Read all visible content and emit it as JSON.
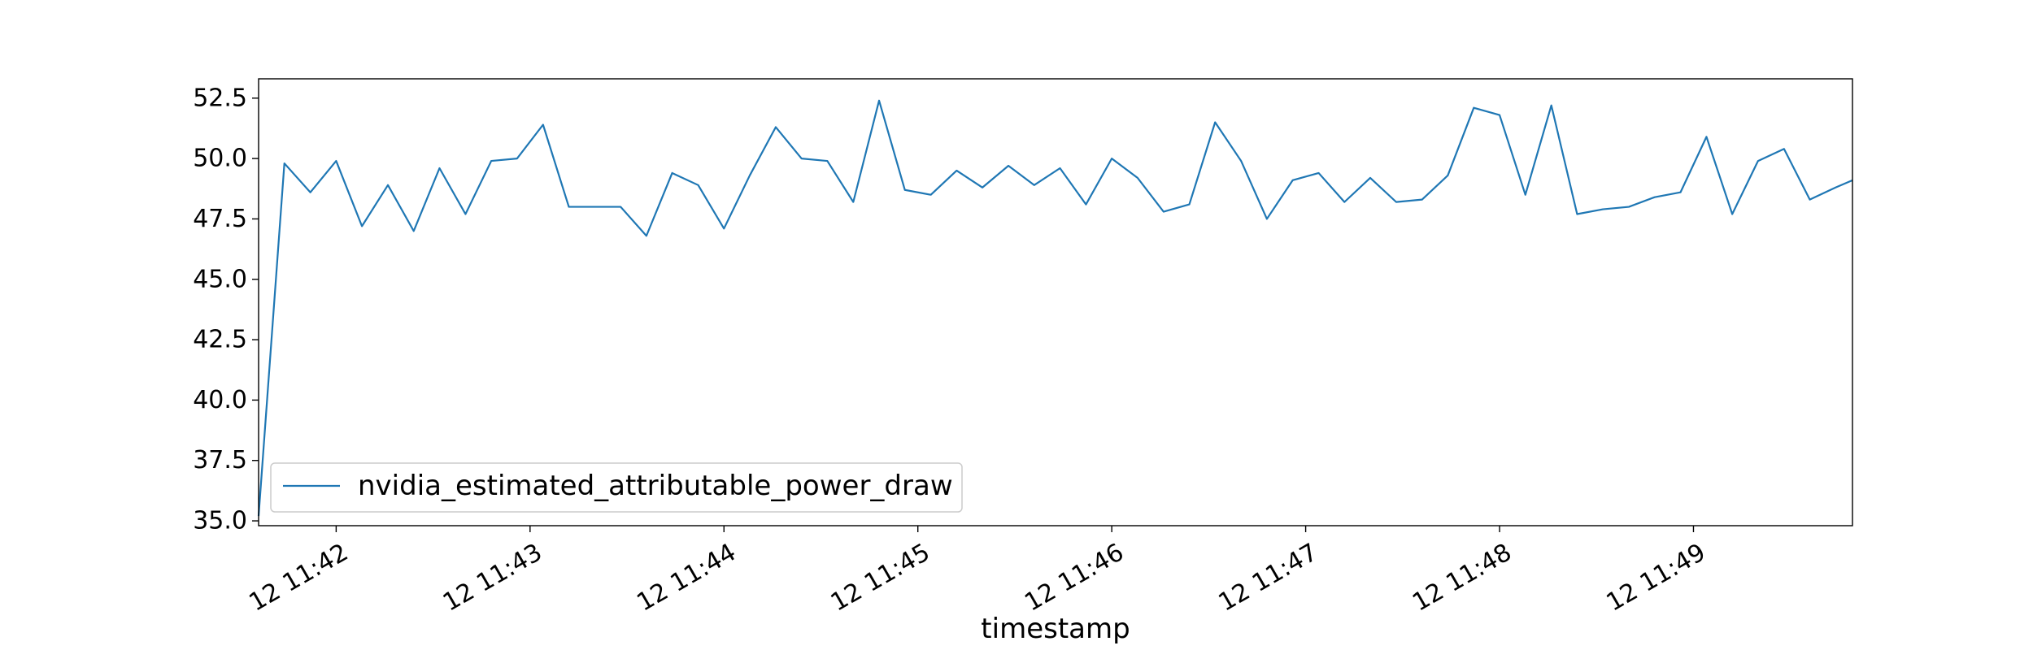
{
  "chart_data": {
    "type": "line",
    "title": "",
    "xlabel": "timestamp",
    "ylabel": "",
    "x_tick_labels": [
      "12 11:42",
      "12 11:43",
      "12 11:44",
      "12 11:45",
      "12 11:46",
      "12 11:47",
      "12 11:48",
      "12 11:49"
    ],
    "x_ticks_min": [
      42,
      43,
      44,
      45,
      46,
      47,
      48,
      49
    ],
    "xlim_min": [
      41.6,
      49.82
    ],
    "y_ticks": [
      35.0,
      37.5,
      40.0,
      42.5,
      45.0,
      47.5,
      50.0,
      52.5
    ],
    "ylim": [
      34.8,
      53.3
    ],
    "legend_position": "lower-left",
    "grid": false,
    "series": [
      {
        "name": "nvidia_estimated_attributable_power_draw",
        "color": "#1f77b4",
        "x_min": [
          41.6,
          41.733,
          41.867,
          42.0,
          42.133,
          42.267,
          42.4,
          42.533,
          42.667,
          42.8,
          42.933,
          43.067,
          43.2,
          43.333,
          43.467,
          43.6,
          43.733,
          43.867,
          44.0,
          44.133,
          44.267,
          44.4,
          44.533,
          44.667,
          44.8,
          44.933,
          45.067,
          45.2,
          45.333,
          45.467,
          45.6,
          45.733,
          45.867,
          46.0,
          46.133,
          46.267,
          46.4,
          46.533,
          46.667,
          46.8,
          46.933,
          47.067,
          47.2,
          47.333,
          47.467,
          47.6,
          47.733,
          47.867,
          48.0,
          48.133,
          48.267,
          48.4,
          48.533,
          48.667,
          48.8,
          48.933,
          49.067,
          49.2,
          49.333,
          49.467,
          49.6,
          49.733,
          49.82
        ],
        "values": [
          35.2,
          49.8,
          48.6,
          49.9,
          47.2,
          48.9,
          47.0,
          49.6,
          47.7,
          49.9,
          50.0,
          51.4,
          48.0,
          48.0,
          48.0,
          46.8,
          49.4,
          48.9,
          47.1,
          49.3,
          51.3,
          50.0,
          49.9,
          48.2,
          52.4,
          48.7,
          48.5,
          49.5,
          48.8,
          49.7,
          48.9,
          49.6,
          48.1,
          50.0,
          49.2,
          47.8,
          48.1,
          51.5,
          49.9,
          47.5,
          49.1,
          49.4,
          48.2,
          49.2,
          48.2,
          48.3,
          49.3,
          52.1,
          51.8,
          48.5,
          52.2,
          47.7,
          47.9,
          48.0,
          48.4,
          48.6,
          50.9,
          47.7,
          49.9,
          50.4,
          48.3,
          48.8,
          49.1
        ]
      }
    ]
  }
}
